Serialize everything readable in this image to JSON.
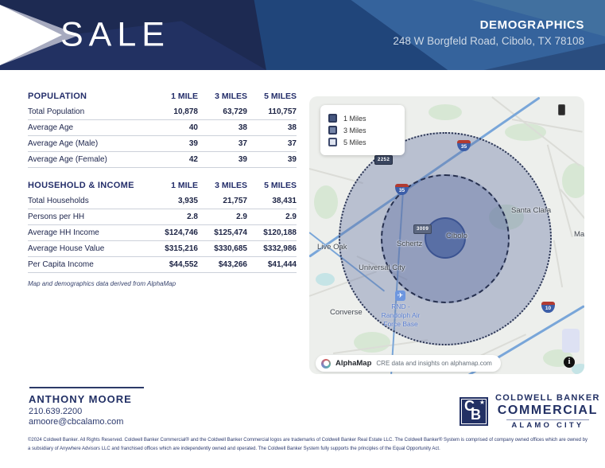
{
  "header": {
    "sale_label": "SALE",
    "title": "DEMOGRAPHICS",
    "address": "248 W Borgfeld Road, Cibolo, TX 78108"
  },
  "population_table": {
    "title": "POPULATION",
    "columns": [
      "1 MILE",
      "3 MILES",
      "5 MILES"
    ],
    "rows": [
      {
        "label": "Total Population",
        "values": [
          "10,878",
          "63,729",
          "110,757"
        ]
      },
      {
        "label": "Average Age",
        "values": [
          "40",
          "38",
          "38"
        ]
      },
      {
        "label": "Average Age (Male)",
        "values": [
          "39",
          "37",
          "37"
        ]
      },
      {
        "label": "Average Age (Female)",
        "values": [
          "42",
          "39",
          "39"
        ]
      }
    ]
  },
  "household_table": {
    "title": "HOUSEHOLD & INCOME",
    "columns": [
      "1 MILE",
      "3 MILES",
      "5 MILES"
    ],
    "rows": [
      {
        "label": "Total Households",
        "values": [
          "3,935",
          "21,757",
          "38,431"
        ]
      },
      {
        "label": "Persons per HH",
        "values": [
          "2.8",
          "2.9",
          "2.9"
        ]
      },
      {
        "label": "Average HH Income",
        "values": [
          "$124,746",
          "$125,474",
          "$120,188"
        ]
      },
      {
        "label": "Average House Value",
        "values": [
          "$315,216",
          "$330,685",
          "$332,986"
        ]
      },
      {
        "label": "Per Capita Income",
        "values": [
          "$44,552",
          "$43,266",
          "$41,444"
        ]
      }
    ]
  },
  "map_note": "Map and demographics data derived from AlphaMap",
  "map": {
    "legend": [
      {
        "label": "1 Miles"
      },
      {
        "label": "3 Miles"
      },
      {
        "label": "5 Miles"
      }
    ],
    "labels": [
      "Live Oak",
      "Universal City",
      "Schertz",
      "Cibolo",
      "Santa Clara",
      "Mar",
      "Converse"
    ],
    "airbase_label": "RND - Randolph Air Force Base",
    "airport_icon_glyph": "✈",
    "shields": {
      "i35": "35",
      "i10": "10",
      "route2252": "2252",
      "route3009": "3009"
    },
    "attribution": {
      "brand": "AlphaMap",
      "text": "CRE data and insights on alphamap.com"
    },
    "info_glyph": "i"
  },
  "contact": {
    "name": "ANTHONY MOORE",
    "phone": "210.639.2200",
    "email": "amoore@cbcalamo.com"
  },
  "brand": {
    "mono_c": "C",
    "mono_b": "B",
    "star": "★",
    "line1": "COLDWELL BANKER",
    "line2": "COMMERCIAL",
    "line3": "ALAMO CITY"
  },
  "disclaimer": "©2024 Coldwell Banker. All Rights Reserved. Coldwell Banker Commercial® and the Coldwell Banker Commercial logos are trademarks of Coldwell Banker Real Estate LLC. The Coldwell Banker® System is comprised of company owned offices which are owned by a subsidiary of Anywhere Advisors LLC and franchised offices which are independently owned and operated. The Coldwell Banker System fully supports the principles of the Equal Opportunity Act.",
  "colors": {
    "navy": "#1d2a52",
    "steel_blue": "#35639c",
    "table_text": "#242e6a",
    "radius_fill": "rgba(96,113,163,0.4)",
    "highway_blue": "#79a6d9"
  }
}
